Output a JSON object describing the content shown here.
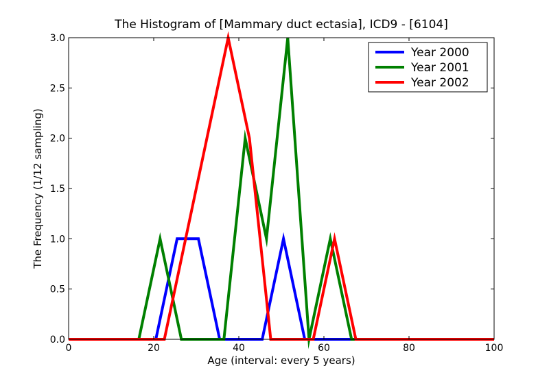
{
  "chart_data": {
    "type": "line",
    "title": "The Histogram of [Mammary duct ectasia], ICD9 - [6104]",
    "xlabel": "Age (interval: every 5 years)",
    "ylabel": "The Frequency (1/12 sampling)",
    "xlim": [
      0,
      100
    ],
    "ylim": [
      0,
      3
    ],
    "x_ticks": [
      "0",
      "20",
      "40",
      "60",
      "80",
      "100"
    ],
    "y_ticks": [
      "0.0",
      "0.5",
      "1.0",
      "1.5",
      "2.0",
      "2.5",
      "3.0"
    ],
    "legend_position": "top-right",
    "grid": false,
    "series": [
      {
        "name": "Year 2000",
        "color": "#0000ff",
        "x": [
          0,
          20.5,
          25.5,
          30.5,
          35.5,
          40.5,
          45.5,
          50.5,
          55.5,
          60.5,
          65.5,
          70.5,
          75.5,
          80.5,
          85.5,
          90.5,
          95.5,
          100
        ],
        "y": [
          0,
          0,
          1,
          1,
          0,
          0,
          0,
          1,
          0,
          0,
          0,
          0,
          0,
          0,
          0,
          0,
          0,
          0
        ]
      },
      {
        "name": "Year 2001",
        "color": "#008000",
        "x": [
          0,
          16.5,
          21.5,
          26.5,
          31.5,
          36.5,
          41.5,
          46.5,
          51.5,
          56.5,
          61.5,
          66.5,
          71.5,
          76.5,
          81.5,
          86.5,
          91.5,
          96.5,
          100
        ],
        "y": [
          0,
          0,
          1,
          0,
          0,
          0,
          2,
          1,
          3,
          0,
          1,
          0,
          0,
          0,
          0,
          0,
          0,
          0,
          0
        ]
      },
      {
        "name": "Year 2002",
        "color": "#ff0000",
        "x": [
          0,
          22.5,
          27.5,
          32.5,
          37.5,
          42.5,
          47.5,
          52.5,
          57.5,
          62.5,
          67.5,
          72.5,
          77.5,
          82.5,
          87.5,
          92.5,
          97.5,
          100
        ],
        "y": [
          0,
          0,
          1,
          2,
          3,
          2,
          0,
          0,
          0,
          1,
          0,
          0,
          0,
          0,
          0,
          0,
          0,
          0
        ]
      }
    ]
  }
}
